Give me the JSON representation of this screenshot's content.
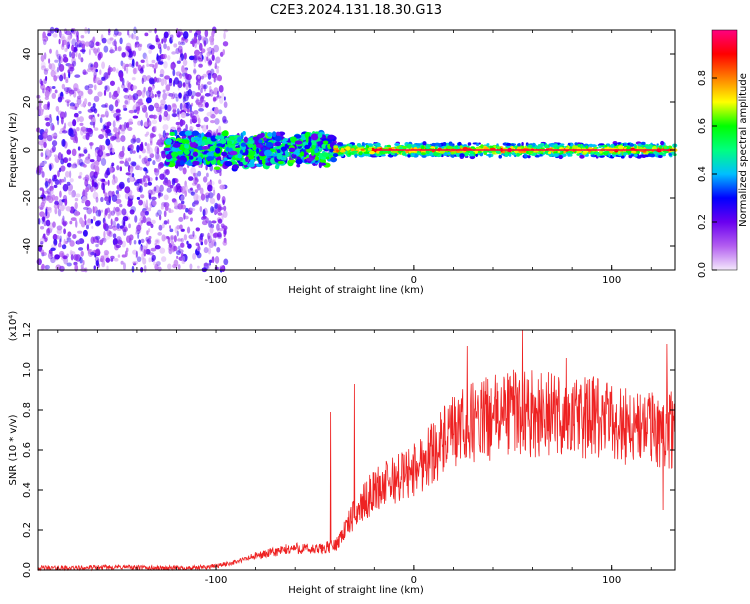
{
  "figure": {
    "title": "C2E3.2024.131.18.30.G13"
  },
  "chart_data": [
    {
      "type": "heatmap",
      "xlabel": "Height of straight line (km)",
      "ylabel": "Frequency (Hz)",
      "xlim": [
        -190,
        132
      ],
      "ylim": [
        -50,
        50
      ],
      "x_ticks": [
        -100,
        0,
        100
      ],
      "y_ticks": [
        -40,
        -20,
        0,
        20,
        40
      ],
      "colorbar": {
        "label": "Normalized spectral amplitude",
        "range": [
          0,
          1
        ],
        "ticks": [
          "0.0",
          "0.2",
          "0.4",
          "0.6",
          "0.8"
        ],
        "tick_values": [
          0.0,
          0.2,
          0.4,
          0.6,
          0.8
        ],
        "colormap": [
          "#f4e8fb",
          "#b35ef0",
          "#6a00f0",
          "#0000ff",
          "#00bfff",
          "#00ff80",
          "#00ff00",
          "#ffff00",
          "#ff8000",
          "#ff0000",
          "#ff0080"
        ]
      },
      "regions": [
        {
          "name": "broadband noise",
          "x_range": [
            -190,
            -95
          ],
          "freq_range": [
            -50,
            50
          ],
          "amplitude": 0.15
        },
        {
          "name": "signal band onset",
          "x_range": [
            -125,
            -40
          ],
          "freq_center": 0,
          "freq_halfwidth": 8,
          "amplitude": 0.35
        },
        {
          "name": "strong carrier",
          "x_range": [
            -40,
            132
          ],
          "freq_center": 0,
          "freq_halfwidth": 3,
          "amplitude": 0.85
        }
      ]
    },
    {
      "type": "line",
      "xlabel": "Height of straight line (km)",
      "ylabel": "SNR (10 * v/v)",
      "y_scale_label": "(x10⁴)",
      "xlim": [
        -190,
        132
      ],
      "ylim": [
        0,
        1.2
      ],
      "x_ticks": [
        -100,
        0,
        100
      ],
      "y_ticks": [
        "0.0",
        "0.2",
        "0.4",
        "0.6",
        "0.8",
        "1.0",
        "1.2"
      ],
      "y_tick_values": [
        0.0,
        0.2,
        0.4,
        0.6,
        0.8,
        1.0,
        1.2
      ],
      "series": [
        {
          "color": "#ee2222",
          "x": [
            -190,
            -170,
            -150,
            -130,
            -110,
            -100,
            -90,
            -80,
            -70,
            -60,
            -50,
            -40,
            -35,
            -30,
            -25,
            -20,
            -10,
            0,
            10,
            20,
            30,
            40,
            50,
            60,
            70,
            80,
            90,
            100,
            110,
            120,
            132
          ],
          "y": [
            0.01,
            0.01,
            0.015,
            0.01,
            0.01,
            0.02,
            0.04,
            0.07,
            0.09,
            0.11,
            0.1,
            0.12,
            0.2,
            0.28,
            0.34,
            0.4,
            0.45,
            0.5,
            0.6,
            0.68,
            0.74,
            0.76,
            0.8,
            0.78,
            0.78,
            0.76,
            0.76,
            0.74,
            0.72,
            0.7,
            0.7
          ]
        }
      ],
      "spikes": [
        {
          "x": -42,
          "y": 0.79
        },
        {
          "x": -30,
          "y": 0.93
        },
        {
          "x": 27,
          "y": 1.12
        },
        {
          "x": 55,
          "y": 1.2
        },
        {
          "x": 77,
          "y": 1.06
        },
        {
          "x": 128,
          "y": 1.13
        },
        {
          "x": 126,
          "y": 0.3
        }
      ]
    }
  ]
}
